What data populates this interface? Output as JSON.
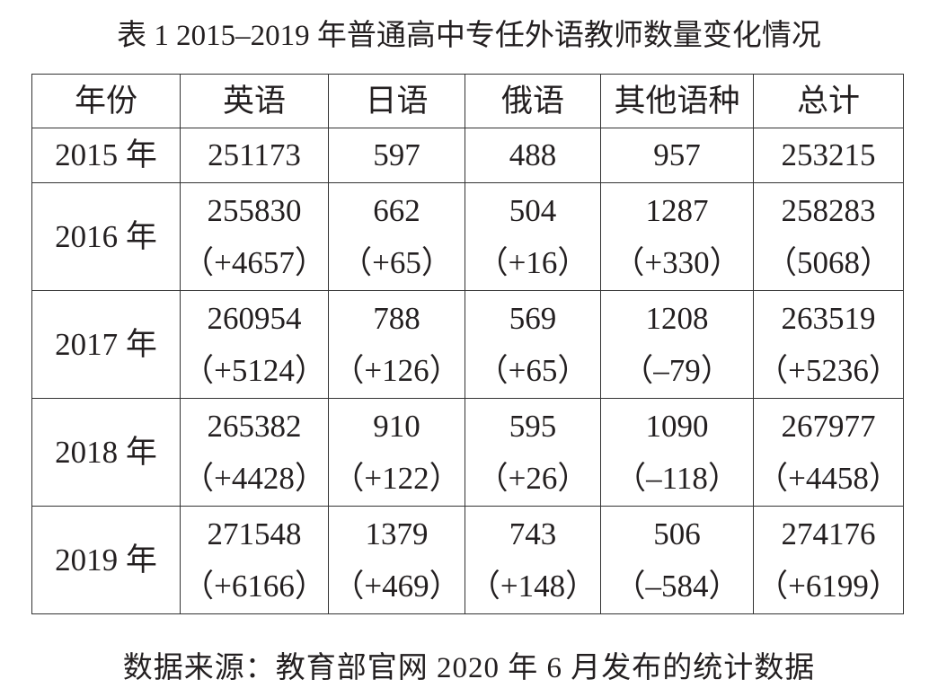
{
  "title": "表 1  2015–2019 年普通高中专任外语教师数量变化情况",
  "table": {
    "header": [
      "年份",
      "英语",
      "日语",
      "俄语",
      "其他语种",
      "总计"
    ],
    "rows": [
      {
        "year": "2015 年",
        "cells": [
          [
            251173
          ],
          [
            597
          ],
          [
            488
          ],
          [
            957
          ],
          [
            253215
          ]
        ]
      },
      {
        "year": "2016 年",
        "cells": [
          [
            255830,
            "（+4657）"
          ],
          [
            662,
            "（+65）"
          ],
          [
            504,
            "（+16）"
          ],
          [
            1287,
            "（+330）"
          ],
          [
            258283,
            "（5068）"
          ]
        ]
      },
      {
        "year": "2017 年",
        "cells": [
          [
            260954,
            "（+5124）"
          ],
          [
            788,
            "（+126）"
          ],
          [
            569,
            "（+65）"
          ],
          [
            1208,
            "（–79）"
          ],
          [
            263519,
            "（+5236）"
          ]
        ]
      },
      {
        "year": "2018 年",
        "cells": [
          [
            265382,
            "（+4428）"
          ],
          [
            910,
            "（+122）"
          ],
          [
            595,
            "（+26）"
          ],
          [
            1090,
            "（–118）"
          ],
          [
            267977,
            "（+4458）"
          ]
        ]
      },
      {
        "year": "2019 年",
        "cells": [
          [
            271548,
            "（+6166）"
          ],
          [
            1379,
            "（+469）"
          ],
          [
            743,
            "（+148）"
          ],
          [
            506,
            "（–584）"
          ],
          [
            274176,
            "（+6199）"
          ]
        ]
      }
    ]
  },
  "source": "数据来源：教育部官网 2020 年 6 月发布的统计数据"
}
